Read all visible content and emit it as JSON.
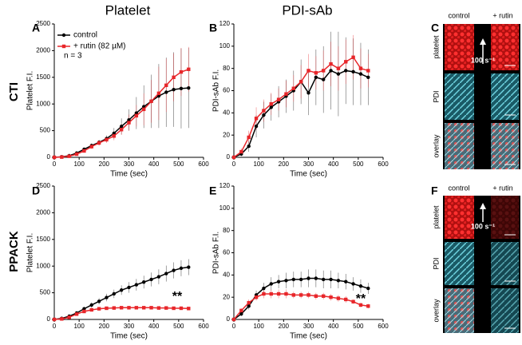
{
  "headers": [
    "Platelet",
    "PDI-sAb"
  ],
  "row_labels": [
    "CTI",
    "PPACK"
  ],
  "panel_letters": [
    "A",
    "B",
    "C",
    "D",
    "E",
    "F"
  ],
  "images": {
    "columns": [
      "control",
      "+ rutin"
    ],
    "rows": [
      "platelet",
      "PDI",
      "overlay"
    ],
    "shear": "100 s⁻¹"
  },
  "chart_data": [
    {
      "type": "line",
      "xlabel": "Time (sec)",
      "ylabel": "Platelet F.I.",
      "xlim": [
        0,
        600
      ],
      "xticks": [
        0,
        100,
        200,
        300,
        400,
        500,
        600
      ],
      "ylim": [
        0,
        2500
      ],
      "yticks": [
        0,
        500,
        1000,
        1500,
        2000,
        2500
      ],
      "legend": "upper left",
      "annotation": "n = 3",
      "x": [
        0,
        30,
        60,
        90,
        120,
        150,
        180,
        210,
        240,
        270,
        300,
        330,
        360,
        390,
        420,
        450,
        480,
        510,
        540
      ],
      "series": [
        {
          "name": "control",
          "color": "#000000",
          "values": [
            0,
            10,
            30,
            80,
            150,
            220,
            280,
            350,
            450,
            580,
            700,
            830,
            950,
            1050,
            1150,
            1220,
            1270,
            1290,
            1300
          ],
          "errors": [
            0,
            5,
            10,
            20,
            30,
            40,
            50,
            60,
            100,
            150,
            200,
            300,
            400,
            500,
            600,
            650,
            700,
            750,
            750
          ]
        },
        {
          "name": "+ rutin (82 µM)",
          "color": "#e8262a",
          "values": [
            0,
            5,
            20,
            60,
            120,
            200,
            270,
            330,
            400,
            520,
            650,
            780,
            900,
            1050,
            1200,
            1350,
            1500,
            1600,
            1650
          ],
          "errors": [
            0,
            5,
            10,
            20,
            30,
            40,
            50,
            60,
            80,
            100,
            150,
            200,
            300,
            400,
            500,
            500,
            450,
            450,
            420
          ]
        }
      ]
    },
    {
      "type": "line",
      "xlabel": "Time (sec)",
      "ylabel": "PDI-sAb F.I.",
      "xlim": [
        0,
        600
      ],
      "xticks": [
        0,
        100,
        200,
        300,
        400,
        500,
        600
      ],
      "ylim": [
        0,
        120
      ],
      "yticks": [
        0,
        20,
        40,
        60,
        80,
        100,
        120
      ],
      "x": [
        0,
        30,
        60,
        90,
        120,
        150,
        180,
        210,
        240,
        270,
        300,
        330,
        360,
        390,
        420,
        450,
        480,
        510,
        540
      ],
      "series": [
        {
          "color": "#000000",
          "values": [
            0,
            3,
            10,
            28,
            38,
            45,
            50,
            55,
            60,
            68,
            58,
            72,
            70,
            78,
            75,
            78,
            77,
            75,
            72
          ],
          "errors": [
            0,
            2,
            5,
            10,
            12,
            12,
            14,
            15,
            18,
            20,
            20,
            25,
            30,
            35,
            38,
            30,
            30,
            28,
            25
          ]
        },
        {
          "color": "#e8262a",
          "values": [
            0,
            5,
            18,
            35,
            42,
            48,
            52,
            57,
            62,
            68,
            78,
            76,
            78,
            84,
            80,
            86,
            90,
            80,
            78
          ],
          "errors": [
            0,
            3,
            6,
            10,
            10,
            10,
            10,
            12,
            12,
            15,
            15,
            15,
            18,
            20,
            20,
            20,
            20,
            18,
            15
          ]
        }
      ]
    },
    {
      "type": "line",
      "xlabel": "Time (sec)",
      "ylabel": "Platelet F.I.",
      "xlim": [
        0,
        600
      ],
      "xticks": [
        0,
        100,
        200,
        300,
        400,
        500,
        600
      ],
      "ylim": [
        0,
        2500
      ],
      "yticks": [
        0,
        500,
        1000,
        1500,
        2000,
        2500
      ],
      "annotation": "**",
      "x": [
        0,
        30,
        60,
        90,
        120,
        150,
        180,
        210,
        240,
        270,
        300,
        330,
        360,
        390,
        420,
        450,
        480,
        510,
        540
      ],
      "series": [
        {
          "color": "#000000",
          "values": [
            0,
            20,
            60,
            120,
            200,
            270,
            340,
            410,
            480,
            550,
            600,
            650,
            700,
            750,
            800,
            860,
            920,
            960,
            980
          ],
          "errors": [
            0,
            10,
            20,
            30,
            40,
            50,
            60,
            70,
            80,
            90,
            100,
            110,
            120,
            130,
            140,
            150,
            150,
            150,
            150
          ]
        },
        {
          "color": "#e8262a",
          "values": [
            0,
            10,
            40,
            100,
            150,
            180,
            200,
            210,
            215,
            220,
            220,
            220,
            220,
            220,
            215,
            215,
            210,
            210,
            205
          ],
          "errors": [
            0,
            5,
            10,
            15,
            20,
            25,
            25,
            25,
            25,
            25,
            25,
            25,
            25,
            25,
            25,
            25,
            25,
            25,
            25
          ]
        }
      ]
    },
    {
      "type": "line",
      "xlabel": "Time (sec)",
      "ylabel": "PDI-sAb F.I.",
      "xlim": [
        0,
        600
      ],
      "xticks": [
        0,
        100,
        200,
        300,
        400,
        500,
        600
      ],
      "ylim": [
        0,
        120
      ],
      "yticks": [
        0,
        20,
        40,
        60,
        80,
        100,
        120
      ],
      "annotation": "**",
      "x": [
        0,
        30,
        60,
        90,
        120,
        150,
        180,
        210,
        240,
        270,
        300,
        330,
        360,
        390,
        420,
        450,
        480,
        510,
        540
      ],
      "series": [
        {
          "color": "#000000",
          "values": [
            0,
            5,
            12,
            22,
            28,
            32,
            34,
            35,
            36,
            36,
            37,
            37,
            36,
            36,
            35,
            34,
            32,
            30,
            28
          ],
          "errors": [
            0,
            2,
            3,
            4,
            5,
            6,
            6,
            7,
            7,
            7,
            8,
            8,
            8,
            8,
            7,
            7,
            6,
            6,
            5
          ]
        },
        {
          "color": "#e8262a",
          "values": [
            0,
            8,
            15,
            20,
            23,
            23,
            23,
            23,
            22,
            22,
            22,
            21,
            21,
            20,
            19,
            18,
            16,
            13,
            12
          ],
          "errors": [
            0,
            2,
            3,
            3,
            4,
            4,
            4,
            4,
            3,
            3,
            3,
            3,
            3,
            3,
            3,
            3,
            2,
            2,
            2
          ]
        }
      ]
    }
  ]
}
